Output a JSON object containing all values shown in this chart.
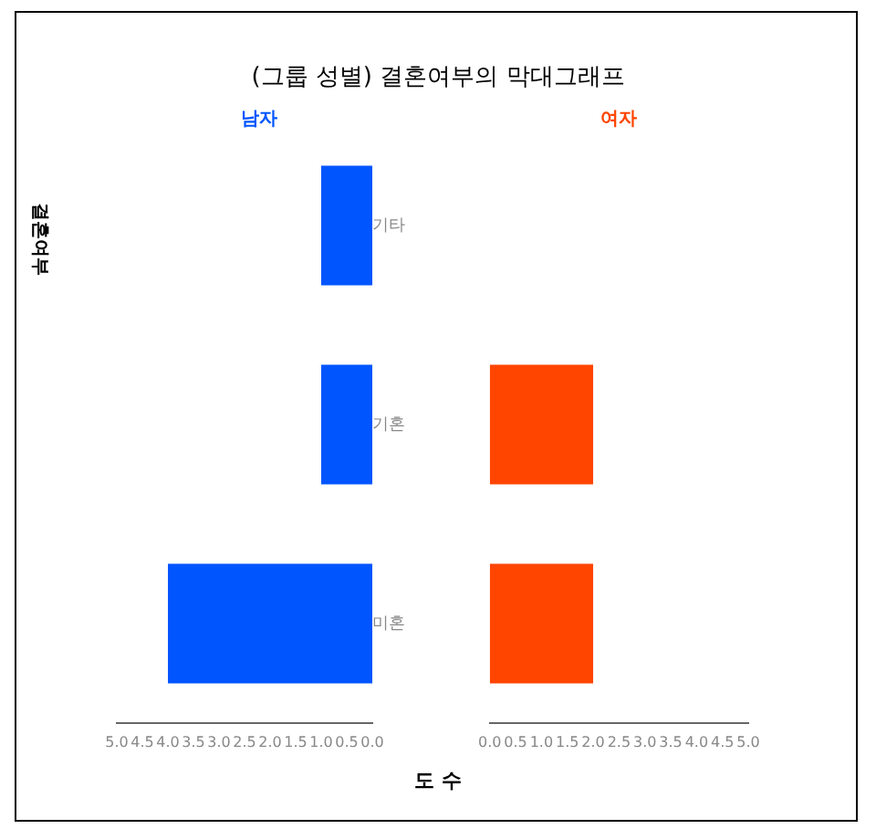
{
  "chart_data": [
    {
      "type": "bar",
      "orientation": "horizontal",
      "title": "(그룹 성별) 결혼여부의 막대그래프",
      "xlabel": "도 수",
      "ylabel": "결혼여부",
      "categories": [
        "기타",
        "기혼",
        "미혼"
      ],
      "series": [
        {
          "name": "남자",
          "color": "#0055ff",
          "values": [
            1.0,
            1.0,
            4.0
          ]
        }
      ],
      "xlim": [
        5.0,
        0.0
      ],
      "xticks": [
        {
          "value": 5.0,
          "label": "5.0"
        },
        {
          "value": 4.5,
          "label": "4.5"
        },
        {
          "value": 4.0,
          "label": "4.0"
        },
        {
          "value": 3.5,
          "label": "3.5"
        },
        {
          "value": 3.0,
          "label": "3.0"
        },
        {
          "value": 2.5,
          "label": "2.5"
        },
        {
          "value": 2.0,
          "label": "2.0"
        },
        {
          "value": 1.5,
          "label": "1.5"
        },
        {
          "value": 1.0,
          "label": "1.0"
        },
        {
          "value": 0.5,
          "label": "0.5"
        },
        {
          "value": 0.0,
          "label": "0.0"
        }
      ],
      "grid": false,
      "legend": false
    },
    {
      "type": "bar",
      "orientation": "horizontal",
      "categories": [
        null,
        null,
        null
      ],
      "series": [
        {
          "name": "여자",
          "color": "#ff4500",
          "values": [
            0.0,
            2.0,
            2.0
          ]
        }
      ],
      "xlim": [
        0.0,
        5.0
      ],
      "xticks": [
        {
          "value": 0.0,
          "label": "0.0"
        },
        {
          "value": 0.5,
          "label": "0.5"
        },
        {
          "value": 1.0,
          "label": "1.0"
        },
        {
          "value": 1.5,
          "label": "1.5"
        },
        {
          "value": 2.0,
          "label": "2.0"
        },
        {
          "value": 2.5,
          "label": "2.5"
        },
        {
          "value": 3.0,
          "label": "3.0"
        },
        {
          "value": 3.5,
          "label": "3.5"
        },
        {
          "value": 4.0,
          "label": "4.0"
        },
        {
          "value": 4.5,
          "label": "4.5"
        },
        {
          "value": 5.0,
          "label": "5.0"
        }
      ],
      "tick_labels": "x",
      "grid": false,
      "legend": false
    }
  ]
}
